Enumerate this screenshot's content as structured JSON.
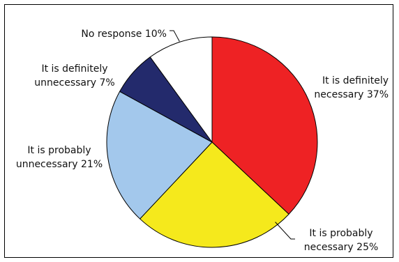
{
  "chart_data": {
    "type": "pie",
    "title": "",
    "slices": [
      {
        "label_lines": [
          "It is definitely",
          "necessary 37%"
        ],
        "value": 37,
        "color": "#ee2224"
      },
      {
        "label_lines": [
          "It is probably",
          "necessary 25%"
        ],
        "value": 25,
        "color": "#f5e91c"
      },
      {
        "label_lines": [
          "It is probably",
          "unnecessary 21%"
        ],
        "value": 21,
        "color": "#a3c8ec"
      },
      {
        "label_lines": [
          "It is definitely",
          "unnecessary 7%"
        ],
        "value": 7,
        "color": "#232a6c"
      },
      {
        "label_lines": [
          "No response 10%"
        ],
        "value": 10,
        "color": "#ffffff"
      }
    ],
    "start_angle": "12 o'clock",
    "direction": "clockwise",
    "legend": "none"
  }
}
